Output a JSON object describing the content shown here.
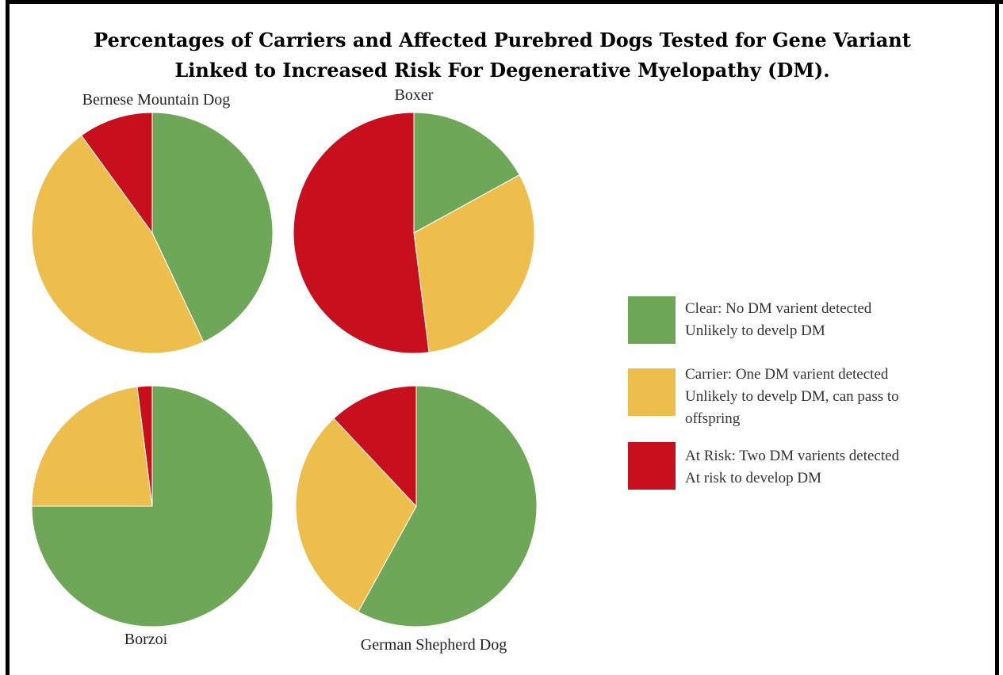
{
  "colors": {
    "clear": "#6ea758",
    "carrier": "#eebe4d",
    "atrisk": "#c80f1e"
  },
  "chart_data": {
    "type": "pie",
    "title": "Percentages of Carriers and Affected Purebred Dogs Tested for Gene Variant Linked to Increased Risk For Degenerative Myelopathy (DM).",
    "title_lines": [
      "Percentages of Carriers and Affected Purebred Dogs Tested for Gene Variant",
      "Linked to Increased Risk For Degenerative Myelopathy (DM)."
    ],
    "categories": [
      "Clear",
      "Carrier",
      "At Risk"
    ],
    "pies": [
      {
        "name": "Bernese Mountain Dog",
        "values": [
          43,
          47,
          10
        ]
      },
      {
        "name": "Boxer",
        "values": [
          17,
          31,
          52
        ]
      },
      {
        "name": "Borzoi",
        "values": [
          75,
          23,
          2
        ]
      },
      {
        "name": "German Shepherd Dog",
        "values": [
          58,
          30,
          12
        ]
      }
    ],
    "legend": [
      {
        "key": "clear",
        "lines": [
          "Clear: No DM varient detected",
          "Unlikely to develp DM"
        ]
      },
      {
        "key": "carrier",
        "lines": [
          "Carrier: One DM varient detected",
          "Unlikely to develp DM, can pass to",
          "offspring"
        ]
      },
      {
        "key": "atrisk",
        "lines": [
          "At Risk: Two DM varients detected",
          "At risk to develop DM"
        ]
      }
    ],
    "legend_placement": "right",
    "start_angle": "12 o'clock",
    "direction": "clockwise"
  }
}
